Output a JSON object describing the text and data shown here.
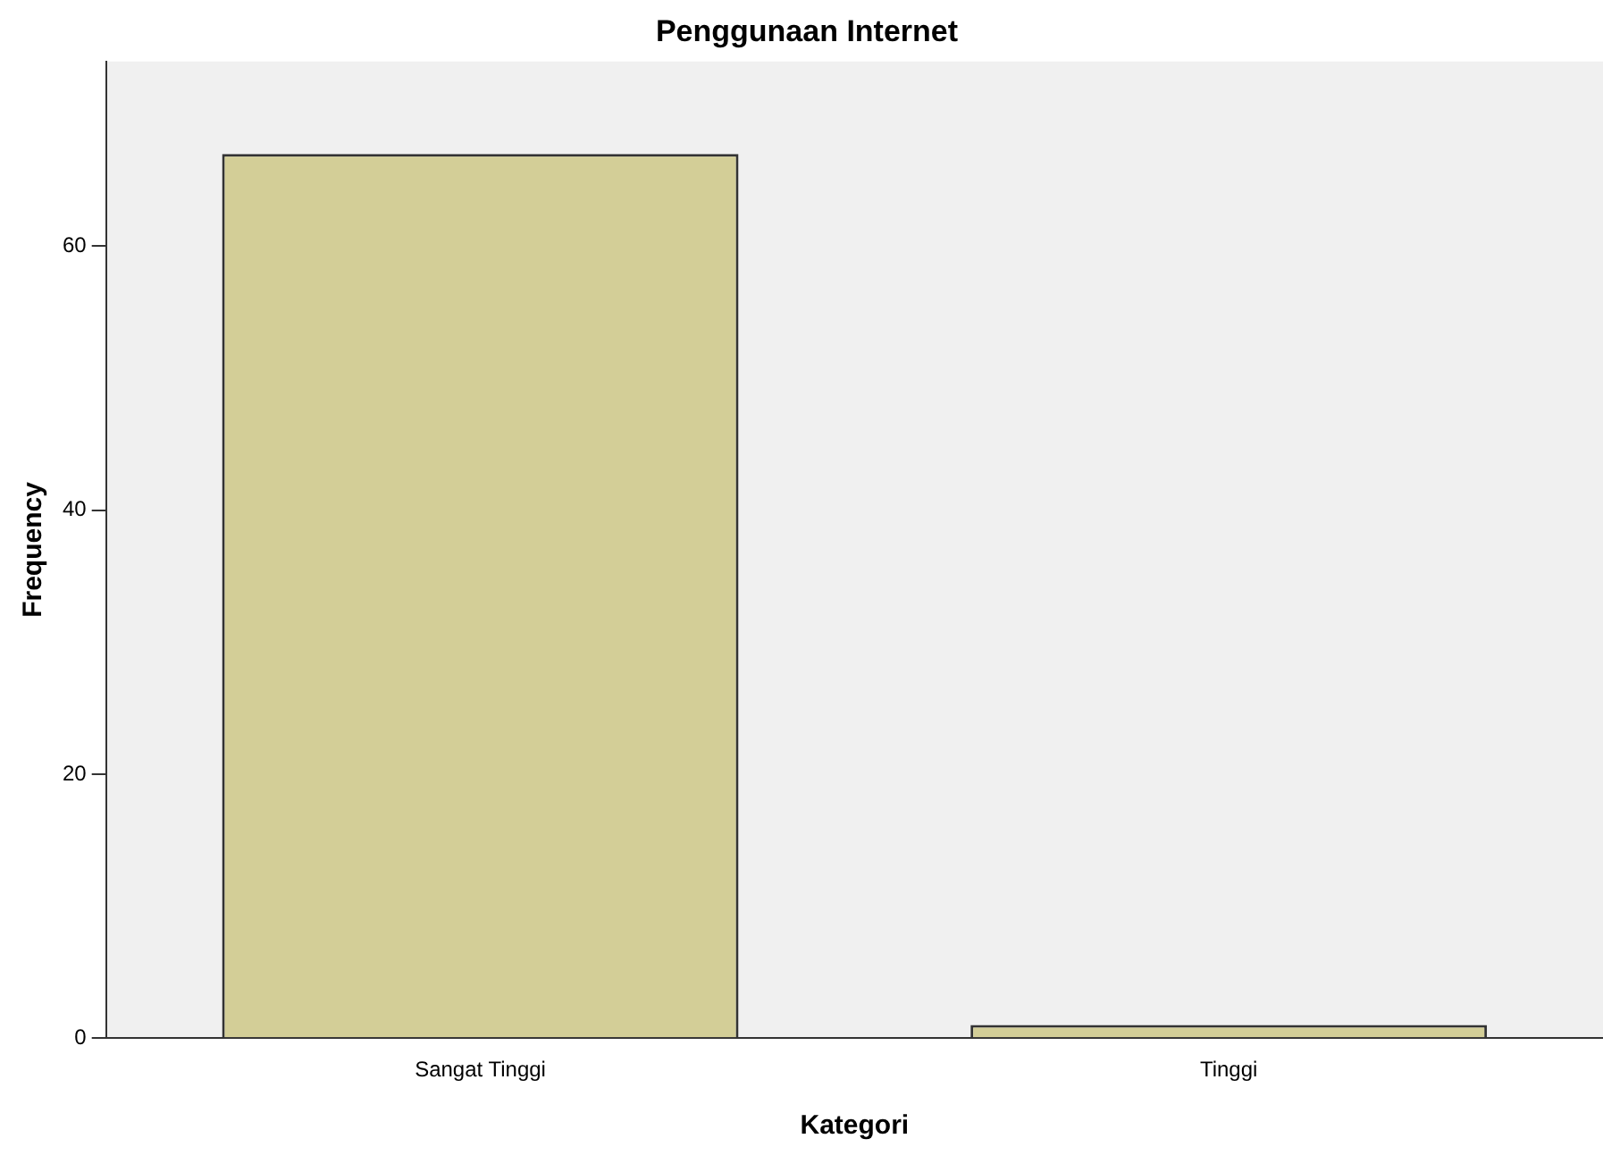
{
  "chart_data": {
    "type": "bar",
    "title": "Penggunaan Internet",
    "xlabel": "Kategori",
    "ylabel": "Frequency",
    "categories": [
      "Sangat Tinggi",
      "Tinggi"
    ],
    "values": [
      67,
      1
    ],
    "color": "#d3ce97",
    "ylim": [
      0,
      74
    ],
    "yticks": [
      0,
      20,
      40,
      60
    ],
    "grid": false,
    "legend": false
  }
}
